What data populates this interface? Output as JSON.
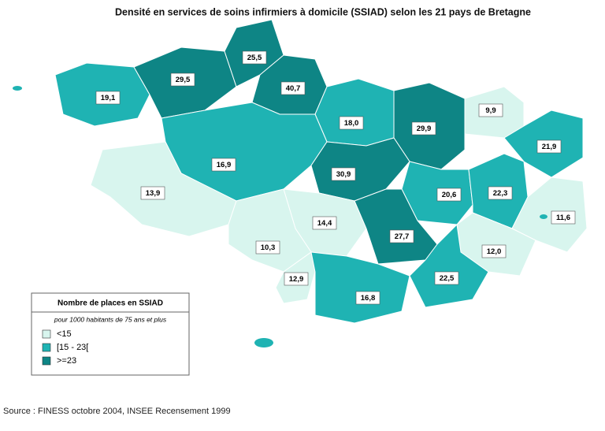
{
  "title": "Densité en services de soins infirmiers à domicile (SSIAD) selon les 21 pays de Bretagne",
  "regions": [
    {
      "value": 19.1,
      "label": "19,1",
      "color": "#1fb3b3"
    },
    {
      "value": 29.5,
      "label": "29,5",
      "color": "#0e8585"
    },
    {
      "value": 25.5,
      "label": "25,5",
      "color": "#0e8585"
    },
    {
      "value": 40.7,
      "label": "40,7",
      "color": "#0e8585"
    },
    {
      "value": 18.0,
      "label": "18,0",
      "color": "#1fb3b3"
    },
    {
      "value": 29.9,
      "label": "29,9",
      "color": "#0e8585"
    },
    {
      "value": 9.9,
      "label": "9,9",
      "color": "#d8f5ee"
    },
    {
      "value": 21.9,
      "label": "21,9",
      "color": "#1fb3b3"
    },
    {
      "value": 16.9,
      "label": "16,9",
      "color": "#1fb3b3"
    },
    {
      "value": 30.9,
      "label": "30,9",
      "color": "#0e8585"
    },
    {
      "value": 20.6,
      "label": "20,6",
      "color": "#1fb3b3"
    },
    {
      "value": 22.3,
      "label": "22,3",
      "color": "#1fb3b3"
    },
    {
      "value": 13.9,
      "label": "13,9",
      "color": "#d8f5ee"
    },
    {
      "value": 14.4,
      "label": "14,4",
      "color": "#d8f5ee"
    },
    {
      "value": 27.7,
      "label": "27,7",
      "color": "#0e8585"
    },
    {
      "value": 11.6,
      "label": "11,6",
      "color": "#d8f5ee"
    },
    {
      "value": 10.3,
      "label": "10,3",
      "color": "#d8f5ee"
    },
    {
      "value": 12.0,
      "label": "12,0",
      "color": "#d8f5ee"
    },
    {
      "value": 12.9,
      "label": "12,9",
      "color": "#d8f5ee"
    },
    {
      "value": 16.8,
      "label": "16,8",
      "color": "#1fb3b3"
    },
    {
      "value": 22.5,
      "label": "22,5",
      "color": "#1fb3b3"
    }
  ],
  "legend": {
    "title": "Nombre de places en SSIAD",
    "subtitle": "pour 1000 habitants de 75 ans et plus",
    "items": [
      {
        "label": "<15",
        "color": "#d8f5ee"
      },
      {
        "label": "[15 - 23[",
        "color": "#1fb3b3"
      },
      {
        "label": ">=23",
        "color": "#0e8585"
      }
    ]
  },
  "source": "Source : FINESS octobre 2004, INSEE Recensement 1999"
}
